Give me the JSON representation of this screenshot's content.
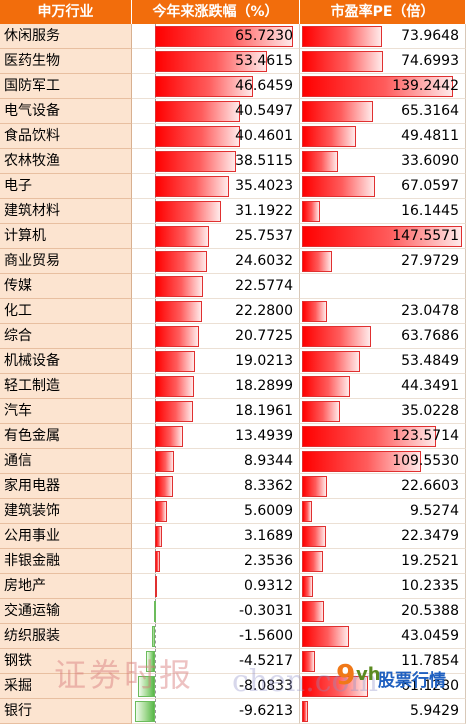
{
  "chart_data": {
    "type": "table",
    "headers": [
      "申万行业",
      "今年来涨跌幅（%）",
      "市盈率PE（倍）"
    ],
    "rows": [
      {
        "industry": "休闲服务",
        "change": 65.723,
        "change_text": "65.7230",
        "pe": 73.9648,
        "pe_text": "73.9648"
      },
      {
        "industry": "医药生物",
        "change": 53.4615,
        "change_text": "53.4615",
        "pe": 74.6993,
        "pe_text": "74.6993"
      },
      {
        "industry": "国防军工",
        "change": 46.6459,
        "change_text": "46.6459",
        "pe": 139.2442,
        "pe_text": "139.2442"
      },
      {
        "industry": "电气设备",
        "change": 40.5497,
        "change_text": "40.5497",
        "pe": 65.3164,
        "pe_text": "65.3164"
      },
      {
        "industry": "食品饮料",
        "change": 40.4601,
        "change_text": "40.4601",
        "pe": 49.4811,
        "pe_text": "49.4811"
      },
      {
        "industry": "农林牧渔",
        "change": 38.5115,
        "change_text": "38.5115",
        "pe": 33.609,
        "pe_text": "33.6090"
      },
      {
        "industry": "电子",
        "change": 35.4023,
        "change_text": "35.4023",
        "pe": 67.0597,
        "pe_text": "67.0597"
      },
      {
        "industry": "建筑材料",
        "change": 31.1922,
        "change_text": "31.1922",
        "pe": 16.1445,
        "pe_text": "16.1445"
      },
      {
        "industry": "计算机",
        "change": 25.7537,
        "change_text": "25.7537",
        "pe": 147.5571,
        "pe_text": "147.5571"
      },
      {
        "industry": "商业贸易",
        "change": 24.6032,
        "change_text": "24.6032",
        "pe": 27.9729,
        "pe_text": "27.9729"
      },
      {
        "industry": "传媒",
        "change": 22.5774,
        "change_text": "22.5774",
        "pe": null,
        "pe_text": ""
      },
      {
        "industry": "化工",
        "change": 22.28,
        "change_text": "22.2800",
        "pe": 23.0478,
        "pe_text": "23.0478"
      },
      {
        "industry": "综合",
        "change": 20.7725,
        "change_text": "20.7725",
        "pe": 63.7686,
        "pe_text": "63.7686"
      },
      {
        "industry": "机械设备",
        "change": 19.0213,
        "change_text": "19.0213",
        "pe": 53.4849,
        "pe_text": "53.4849"
      },
      {
        "industry": "轻工制造",
        "change": 18.2899,
        "change_text": "18.2899",
        "pe": 44.3491,
        "pe_text": "44.3491"
      },
      {
        "industry": "汽车",
        "change": 18.1961,
        "change_text": "18.1961",
        "pe": 35.0228,
        "pe_text": "35.0228"
      },
      {
        "industry": "有色金属",
        "change": 13.4939,
        "change_text": "13.4939",
        "pe": 123.5714,
        "pe_text": "123.5714"
      },
      {
        "industry": "通信",
        "change": 8.9344,
        "change_text": "8.9344",
        "pe": 109.553,
        "pe_text": "109.5530"
      },
      {
        "industry": "家用电器",
        "change": 8.3362,
        "change_text": "8.3362",
        "pe": 22.6603,
        "pe_text": "22.6603"
      },
      {
        "industry": "建筑装饰",
        "change": 5.6009,
        "change_text": "5.6009",
        "pe": 9.5274,
        "pe_text": "9.5274"
      },
      {
        "industry": "公用事业",
        "change": 3.1689,
        "change_text": "3.1689",
        "pe": 22.3479,
        "pe_text": "22.3479"
      },
      {
        "industry": "非银金融",
        "change": 2.3536,
        "change_text": "2.3536",
        "pe": 19.2521,
        "pe_text": "19.2521"
      },
      {
        "industry": "房地产",
        "change": 0.9312,
        "change_text": "0.9312",
        "pe": 10.2335,
        "pe_text": "10.2335"
      },
      {
        "industry": "交通运输",
        "change": -0.3031,
        "change_text": "-0.3031",
        "pe": 20.5388,
        "pe_text": "20.5388"
      },
      {
        "industry": "纺织服装",
        "change": -1.56,
        "change_text": "-1.5600",
        "pe": 43.0459,
        "pe_text": "43.0459"
      },
      {
        "industry": "钢铁",
        "change": -4.5217,
        "change_text": "-4.5217",
        "pe": 11.7854,
        "pe_text": "11.7854"
      },
      {
        "industry": "采掘",
        "change": -8.0833,
        "change_text": "-8.0833",
        "pe": 61.128,
        "pe_text": "61.1280"
      },
      {
        "industry": "银行",
        "change": -9.6213,
        "change_text": "-9.6213",
        "pe": 5.9429,
        "pe_text": "5.9429"
      }
    ],
    "change_range": [
      -9.6213,
      65.723
    ],
    "pe_range": [
      0,
      147.5571
    ],
    "positive_bar_color": "#ff0000",
    "negative_bar_color": "#58b848"
  },
  "watermark": {
    "text1": "证券时报",
    "text2": "chen.com",
    "logo_mark": "9",
    "logo_v": "vh",
    "logo_text": "股票行情"
  },
  "colors": {
    "header_bg": "#f26d0c",
    "name_bg": "#fce4d0"
  }
}
